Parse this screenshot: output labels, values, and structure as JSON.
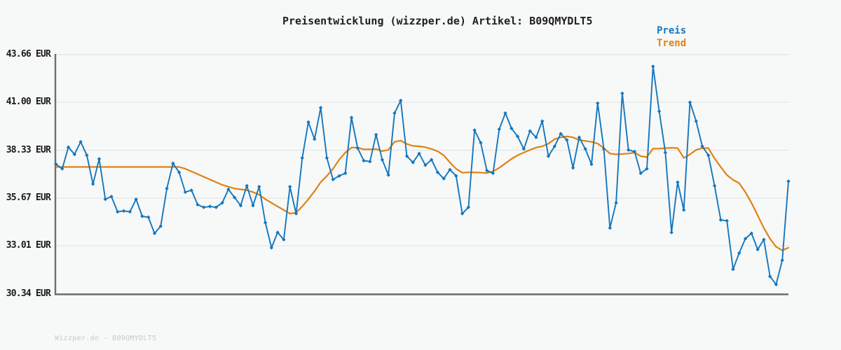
{
  "title": "Preisentwicklung (wizzper.de) Artikel: B09QMYDLT5",
  "watermark": "Wizzper.de - B09QMYDLT5",
  "legend": {
    "preis": {
      "label": "Preis",
      "color": "#1377be"
    },
    "trend": {
      "label": "Trend",
      "color": "#e0820f"
    }
  },
  "colors": {
    "background": "#f7f8f8",
    "grid": "#e3e4e4",
    "axis": "#6e6e6e",
    "text": "#1f1f1f",
    "price": "#1377be",
    "trend": "#e0820f",
    "watermark": "#c9c9c9"
  },
  "chart_data": {
    "type": "line",
    "title": "Preisentwicklung (wizzper.de) Artikel: B09QMYDLT5",
    "xlabel": "",
    "ylabel": "",
    "ylim": [
      30.34,
      43.66
    ],
    "grid": true,
    "legend_position": "top-right",
    "x_tick_labels": [],
    "y_ticks": [
      {
        "value": 43.66,
        "label": "43.66 EUR"
      },
      {
        "value": 41.0,
        "label": "41.00 EUR"
      },
      {
        "value": 38.33,
        "label": "38.33 EUR"
      },
      {
        "value": 35.67,
        "label": "35.67 EUR"
      },
      {
        "value": 33.01,
        "label": "33.01 EUR"
      },
      {
        "value": 30.34,
        "label": "30.34 EUR"
      }
    ],
    "series": [
      {
        "name": "Preis",
        "color": "#1377be",
        "marker": true,
        "values": [
          37.55,
          37.3,
          38.5,
          38.1,
          38.8,
          38.05,
          36.45,
          37.85,
          35.6,
          35.75,
          34.9,
          34.95,
          34.9,
          35.6,
          34.65,
          34.6,
          33.7,
          34.1,
          36.2,
          37.6,
          37.1,
          36.0,
          36.1,
          35.3,
          35.15,
          35.2,
          35.15,
          35.4,
          36.15,
          35.7,
          35.25,
          36.35,
          35.25,
          36.3,
          34.3,
          32.9,
          33.75,
          33.35,
          36.3,
          34.8,
          37.9,
          39.9,
          38.95,
          40.7,
          37.9,
          36.7,
          36.9,
          37.05,
          40.15,
          38.45,
          37.75,
          37.7,
          39.2,
          37.8,
          36.95,
          40.4,
          41.1,
          38.0,
          37.65,
          38.15,
          37.5,
          37.8,
          37.1,
          36.75,
          37.25,
          36.9,
          34.8,
          35.15,
          39.45,
          38.75,
          37.2,
          37.05,
          39.5,
          40.4,
          39.55,
          39.1,
          38.4,
          39.4,
          39.05,
          39.95,
          38.0,
          38.55,
          39.25,
          38.9,
          37.35,
          39.05,
          38.4,
          37.55,
          40.95,
          38.4,
          34.0,
          35.4,
          41.5,
          38.35,
          38.25,
          37.05,
          37.3,
          43.0,
          40.5,
          38.2,
          33.75,
          36.55,
          35.0,
          41.0,
          39.95,
          38.55,
          38.05,
          36.35,
          34.45,
          34.4,
          31.7,
          32.6,
          33.4,
          33.7,
          32.8,
          33.35,
          31.3,
          30.85,
          32.2,
          36.6
        ]
      },
      {
        "name": "Trend",
        "color": "#e0820f",
        "marker": false,
        "values": [
          37.4,
          37.4,
          37.4,
          37.4,
          37.4,
          37.4,
          37.4,
          37.4,
          37.4,
          37.4,
          37.4,
          37.4,
          37.4,
          37.4,
          37.4,
          37.4,
          37.4,
          37.4,
          37.4,
          37.4,
          37.4,
          37.3,
          37.15,
          37.0,
          36.85,
          36.7,
          36.55,
          36.4,
          36.3,
          36.2,
          36.15,
          36.1,
          36.0,
          35.85,
          35.6,
          35.4,
          35.2,
          35.0,
          34.8,
          34.85,
          35.2,
          35.6,
          36.05,
          36.55,
          36.9,
          37.3,
          37.8,
          38.2,
          38.48,
          38.48,
          38.38,
          38.38,
          38.4,
          38.28,
          38.35,
          38.8,
          38.87,
          38.68,
          38.57,
          38.55,
          38.5,
          38.4,
          38.27,
          38.05,
          37.65,
          37.3,
          37.08,
          37.1,
          37.1,
          37.08,
          37.06,
          37.15,
          37.35,
          37.6,
          37.85,
          38.05,
          38.2,
          38.35,
          38.48,
          38.55,
          38.7,
          38.95,
          39.05,
          39.1,
          39.05,
          38.9,
          38.85,
          38.8,
          38.7,
          38.45,
          38.15,
          38.1,
          38.12,
          38.15,
          38.2,
          38.0,
          37.95,
          38.42,
          38.42,
          38.45,
          38.47,
          38.45,
          37.9,
          38.1,
          38.35,
          38.45,
          38.45,
          37.87,
          37.4,
          36.95,
          36.68,
          36.5,
          36.0,
          35.4,
          34.7,
          34.0,
          33.4,
          32.95,
          32.75,
          32.9
        ]
      }
    ]
  }
}
